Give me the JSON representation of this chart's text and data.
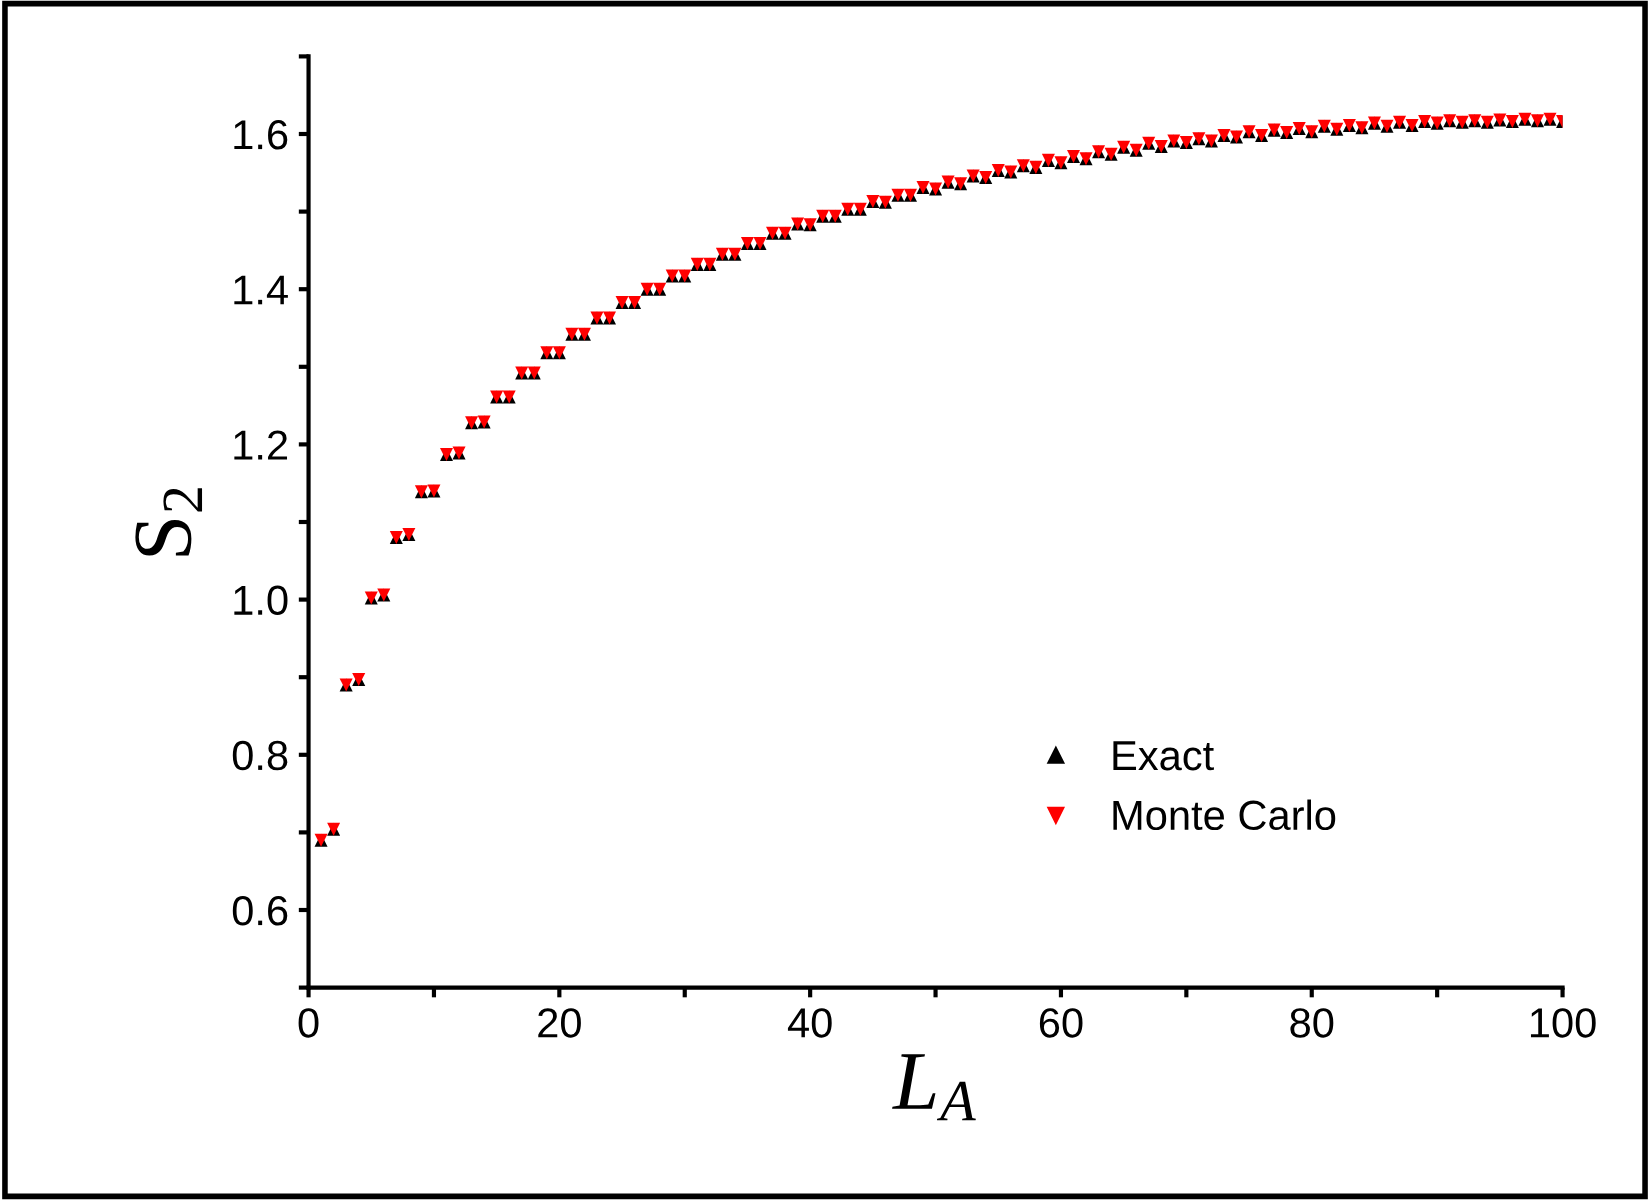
{
  "chart_data": {
    "type": "scatter",
    "xlabel": "L$_{A}$",
    "ylabel": "S$_{2}$",
    "x": [
      1,
      2,
      3,
      4,
      5,
      6,
      7,
      8,
      9,
      10,
      11,
      12,
      13,
      14,
      15,
      16,
      17,
      18,
      19,
      20,
      21,
      22,
      23,
      24,
      25,
      26,
      27,
      28,
      29,
      30,
      31,
      32,
      33,
      34,
      35,
      36,
      37,
      38,
      39,
      40,
      41,
      42,
      43,
      44,
      45,
      46,
      47,
      48,
      49,
      50,
      51,
      52,
      53,
      54,
      55,
      56,
      57,
      58,
      59,
      60,
      61,
      62,
      63,
      64,
      65,
      66,
      67,
      68,
      69,
      70,
      71,
      72,
      73,
      74,
      75,
      76,
      77,
      78,
      79,
      80,
      81,
      82,
      83,
      84,
      85,
      86,
      87,
      88,
      89,
      90,
      91,
      92,
      93,
      94,
      95,
      96,
      97,
      98,
      99,
      100
    ],
    "series": [
      {
        "name": "Exact",
        "color": "#000000",
        "marker": "triangle",
        "values": [
          0.69,
          0.704,
          0.89,
          0.897,
          1.002,
          1.006,
          1.08,
          1.084,
          1.139,
          1.14,
          1.187,
          1.189,
          1.228,
          1.229,
          1.261,
          1.261,
          1.292,
          1.292,
          1.318,
          1.318,
          1.342,
          1.342,
          1.363,
          1.363,
          1.383,
          1.383,
          1.4,
          1.4,
          1.417,
          1.417,
          1.432,
          1.432,
          1.445,
          1.445,
          1.459,
          1.459,
          1.472,
          1.472,
          1.484,
          1.483,
          1.494,
          1.494,
          1.503,
          1.503,
          1.513,
          1.512,
          1.521,
          1.521,
          1.531,
          1.529,
          1.538,
          1.536,
          1.546,
          1.544,
          1.553,
          1.551,
          1.559,
          1.557,
          1.566,
          1.563,
          1.571,
          1.568,
          1.577,
          1.574,
          1.583,
          1.579,
          1.588,
          1.584,
          1.591,
          1.589,
          1.594,
          1.591,
          1.598,
          1.596,
          1.603,
          1.598,
          1.605,
          1.602,
          1.607,
          1.603,
          1.61,
          1.606,
          1.611,
          1.608,
          1.614,
          1.61,
          1.615,
          1.611,
          1.616,
          1.614,
          1.617,
          1.615,
          1.617,
          1.615,
          1.618,
          1.616,
          1.619,
          1.617,
          1.619,
          1.616
        ]
      },
      {
        "name": "Monte Carlo",
        "color": "#ff0000",
        "marker": "triangle_down",
        "values": [
          0.69,
          0.704,
          0.89,
          0.897,
          1.002,
          1.006,
          1.08,
          1.084,
          1.139,
          1.14,
          1.187,
          1.189,
          1.228,
          1.229,
          1.261,
          1.261,
          1.292,
          1.292,
          1.318,
          1.318,
          1.342,
          1.342,
          1.363,
          1.363,
          1.383,
          1.383,
          1.4,
          1.4,
          1.417,
          1.417,
          1.432,
          1.432,
          1.445,
          1.445,
          1.459,
          1.459,
          1.472,
          1.472,
          1.484,
          1.483,
          1.494,
          1.494,
          1.503,
          1.503,
          1.513,
          1.512,
          1.521,
          1.521,
          1.531,
          1.529,
          1.538,
          1.536,
          1.546,
          1.544,
          1.553,
          1.551,
          1.559,
          1.557,
          1.566,
          1.563,
          1.571,
          1.568,
          1.577,
          1.574,
          1.583,
          1.579,
          1.588,
          1.584,
          1.591,
          1.589,
          1.594,
          1.591,
          1.598,
          1.596,
          1.603,
          1.598,
          1.605,
          1.602,
          1.607,
          1.603,
          1.61,
          1.606,
          1.611,
          1.608,
          1.614,
          1.61,
          1.615,
          1.611,
          1.616,
          1.614,
          1.617,
          1.615,
          1.617,
          1.615,
          1.618,
          1.616,
          1.619,
          1.617,
          1.619,
          1.616
        ]
      }
    ],
    "xlim": [
      0,
      100
    ],
    "xticks": [
      0,
      {
        "value": 10,
        "label": null
      },
      20,
      {
        "value": 30,
        "label": null
      },
      40,
      {
        "value": 50,
        "label": null
      },
      60,
      {
        "value": 70,
        "label": null
      },
      80,
      {
        "value": 90,
        "label": null
      },
      100
    ],
    "ylim": [
      0.5,
      1.7
    ],
    "yticks": [
      {
        "value": 0.5,
        "label": null
      },
      0.6,
      {
        "value": 0.7,
        "label": null
      },
      0.8,
      {
        "value": 0.9,
        "label": null
      },
      {
        "value": 1.0,
        "label": "1.0"
      },
      {
        "value": 1.1,
        "label": null
      },
      1.2,
      {
        "value": 1.3,
        "label": null
      },
      1.4,
      {
        "value": 1.5,
        "label": null
      },
      1.6,
      {
        "value": 1.7,
        "label": null
      }
    ],
    "legend": "bottom right",
    "grid": false
  }
}
